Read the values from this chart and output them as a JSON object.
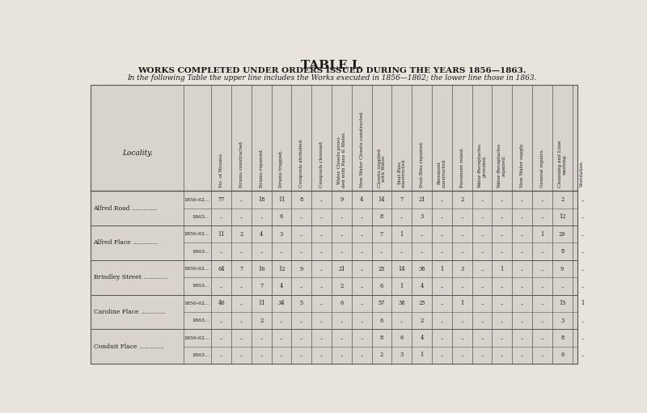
{
  "title": "TABLE I.",
  "subtitle": "WORKS COMPLETED UNDER ORDERS ISSUED DURING THE YEARS 1856—1863.",
  "note": "In the following Table the upper line includes the Works executed in 1856—1862; the lower line those in 1863.",
  "col_headers": [
    "No. of Houses.",
    "Drains constructed.",
    "Drains repaired.",
    "Drains trapped.",
    "Cesspools abolished.",
    "Cesspools cleansed.",
    "Water Closets provi-\nded with Pans & Water.",
    "New Water Closets constructed.",
    "Closets supplied\nwith Water.",
    "Dust-Bins\nconstructed.",
    "Dust-Bins repaired.",
    "Pavement\nconstructed.",
    "Pavement relaid.",
    "Water-Receptacles\nprovided.",
    "Water-Receptacles\nrepaired.",
    "New Water supply.",
    "General repairs.",
    "Cleansing and Lime\nwashing.",
    "Ventilation."
  ],
  "rows": [
    {
      "locality": "Alfred Road",
      "year1": "1856-62...",
      "year2": "1863...",
      "data1": [
        "77",
        "..",
        "18",
        "11",
        "8",
        "..",
        "9",
        "4",
        "14",
        "7",
        "21",
        "..",
        "2",
        "..",
        "..",
        "..",
        "..",
        "2",
        ".."
      ],
      "data2": [
        "..",
        "..",
        "..",
        "6",
        "..",
        "..",
        "..",
        "..",
        "8",
        "..",
        "3",
        "..",
        "..",
        "..",
        "..",
        "..",
        "..",
        "12",
        ".."
      ]
    },
    {
      "locality": "Alfred Place",
      "year1": "1856-62...",
      "year2": "1863...",
      "data1": [
        "11",
        "2",
        "4",
        "3",
        "..",
        "..",
        "..",
        "..",
        "7",
        "1",
        "..",
        "..",
        "..",
        "..",
        "..",
        "..",
        "1",
        "29",
        ".."
      ],
      "data2": [
        "..",
        "..",
        "..",
        "..",
        "..",
        "..",
        "..",
        "..",
        "..",
        "..",
        "..",
        "..",
        "..",
        "..",
        "..",
        "..",
        "..",
        "8",
        ".."
      ]
    },
    {
      "locality": "Brindley Street",
      "year1": "1856-62...",
      "year2": "1863...",
      "data1": [
        "64",
        "7",
        "16",
        "12",
        "9",
        "..",
        "21",
        "..",
        "25",
        "14",
        "38",
        "1",
        "3",
        "..",
        "1",
        "..",
        "..",
        "9",
        ".."
      ],
      "data2": [
        "..",
        "..",
        "7",
        "4",
        "..",
        "..",
        "2",
        "..",
        "6",
        "1",
        "4",
        "..",
        "..",
        "..",
        "..",
        "..",
        "..",
        "..",
        ".."
      ]
    },
    {
      "locality": "Caroline Place",
      "year1": "1856-62...",
      "year2": "1863...",
      "data1": [
        "46",
        "..",
        "11",
        "34",
        "5",
        "..",
        "6",
        "..",
        "57",
        "38",
        "25",
        "..",
        "1",
        "..",
        "..",
        "..",
        "..",
        "15",
        "1"
      ],
      "data2": [
        "..",
        "..",
        "2",
        "..",
        "..",
        "..",
        "..",
        "..",
        "6",
        "..",
        "2",
        "..",
        "..",
        "..",
        "..",
        "..",
        "..",
        "3",
        ".."
      ]
    },
    {
      "locality": "Conduit Place",
      "year1": "1856-62...",
      "year2": "1863...",
      "data1": [
        "..",
        "..",
        "..",
        "..",
        "..",
        "..",
        "..",
        "..",
        "8",
        "6",
        "4",
        "..",
        "..",
        "..",
        "..",
        "..",
        "..",
        "8",
        ".."
      ],
      "data2": [
        "..",
        "..",
        "..",
        "..",
        "..",
        "..",
        "..",
        "..",
        "2",
        "3",
        "1",
        "..",
        "..",
        "..",
        "..",
        "..",
        "..",
        "6",
        ".."
      ]
    }
  ],
  "bg_color": "#e8e4dc",
  "table_bg": "#d8d4cc",
  "line_color": "#555555",
  "text_color": "#1a1a1a"
}
